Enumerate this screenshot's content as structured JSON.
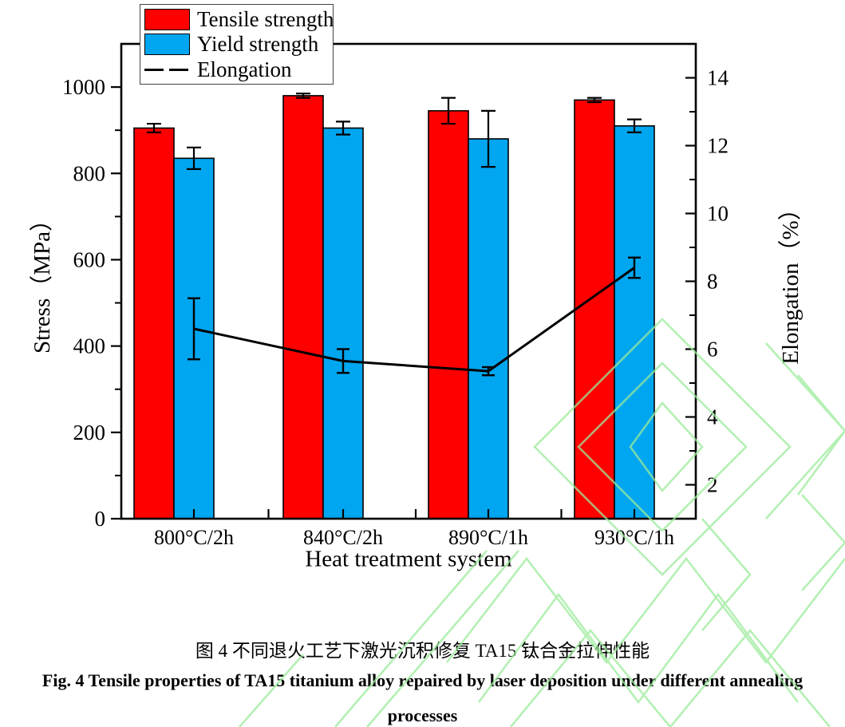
{
  "chart_data": {
    "type": "bar",
    "subtype": "grouped-bars-with-line-overlay",
    "categories": [
      "800°C/2h",
      "840°C/2h",
      "890°C/1h",
      "930°C/1h"
    ],
    "series": [
      {
        "name": "Tensile strength",
        "type": "bar",
        "axis": "left",
        "values": [
          905,
          980,
          945,
          970
        ],
        "errors": [
          10,
          5,
          30,
          5
        ],
        "color": "#fe0000"
      },
      {
        "name": "Yield strength",
        "type": "bar",
        "axis": "left",
        "values": [
          835,
          905,
          880,
          910
        ],
        "errors": [
          25,
          15,
          65,
          15
        ],
        "color": "#00a6ef"
      },
      {
        "name": "Elongation",
        "type": "line",
        "axis": "right",
        "values": [
          6.6,
          5.65,
          5.35,
          8.4
        ],
        "errors": [
          0.9,
          0.35,
          0.12,
          0.3
        ],
        "color": "#000000"
      }
    ],
    "left_axis": {
      "label": "Stress（MPa）",
      "min": 0,
      "max": 1100,
      "major_ticks": [
        0,
        200,
        400,
        600,
        800,
        1000
      ],
      "minor_ticks": [
        100,
        300,
        500,
        700,
        900
      ]
    },
    "right_axis": {
      "label": "Elongation（%）",
      "min": 1,
      "max": 15,
      "major_ticks": [
        2,
        4,
        6,
        8,
        10,
        12,
        14
      ],
      "minor_ticks": [
        3,
        5,
        7,
        9,
        11,
        13
      ]
    },
    "x_axis": {
      "label": "Heat treatment system"
    },
    "legend_position": "top-left-inside",
    "grid": "off"
  },
  "caption": {
    "zh": "图 4  不同退火工艺下激光沉积修复 TA15 钛合金拉伸性能",
    "en_line1": "Fig. 4 Tensile properties of TA15 titanium alloy repaired by laser deposition under different annealing",
    "en_line2": "processes"
  },
  "colors": {
    "tensile": "#fe0000",
    "yield": "#00a6ef",
    "line": "#000000",
    "frame": "#000000",
    "watermark": "#9beb9b"
  }
}
